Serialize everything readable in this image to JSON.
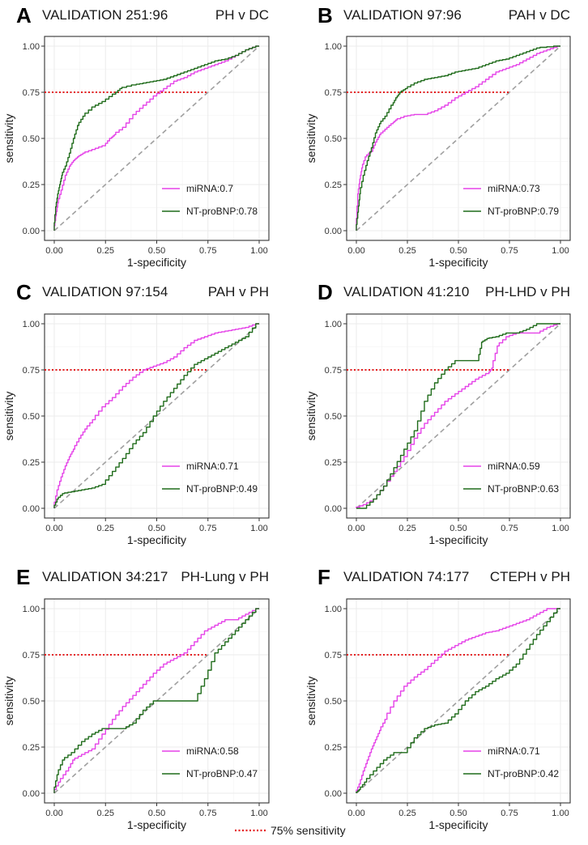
{
  "figure_legend": {
    "label": "75% sensitivity"
  },
  "colors": {
    "mirna": "#e542e8",
    "ntprobnp": "#1f6b1a",
    "threshold": "#e41a1c",
    "diagonal": "#a0a0a0",
    "grid": "#ebebeb",
    "panel_border": "#333333"
  },
  "chart_data": [
    {
      "type": "line",
      "letter": "A",
      "title": "VALIDATION 251:96",
      "subtitle": "PH v DC",
      "xlabel": "1-specificity",
      "ylabel": "sensitivity",
      "xlim": [
        0,
        1
      ],
      "ylim": [
        0,
        1
      ],
      "ticks": [
        "0.00",
        "0.25",
        "0.50",
        "0.75",
        "1.00"
      ],
      "threshold": 0.75,
      "series": [
        {
          "name": "miRNA",
          "legend": "miRNA:0.7",
          "color": "#e542e8",
          "x": [
            0,
            0.01,
            0.02,
            0.04,
            0.06,
            0.08,
            0.1,
            0.12,
            0.15,
            0.2,
            0.25,
            0.28,
            0.3,
            0.35,
            0.4,
            0.45,
            0.5,
            0.55,
            0.6,
            0.65,
            0.7,
            0.75,
            0.8,
            0.85,
            0.9,
            0.95,
            1.0
          ],
          "y": [
            0,
            0.08,
            0.15,
            0.22,
            0.3,
            0.35,
            0.38,
            0.4,
            0.42,
            0.44,
            0.46,
            0.5,
            0.52,
            0.56,
            0.63,
            0.68,
            0.73,
            0.77,
            0.81,
            0.83,
            0.86,
            0.88,
            0.9,
            0.92,
            0.95,
            0.98,
            1.0
          ]
        },
        {
          "name": "NT-proBNP",
          "legend": "NT-proBNP:0.78",
          "color": "#1f6b1a",
          "x": [
            0,
            0.01,
            0.02,
            0.03,
            0.04,
            0.06,
            0.08,
            0.1,
            0.12,
            0.15,
            0.2,
            0.25,
            0.3,
            0.33,
            0.4,
            0.45,
            0.5,
            0.55,
            0.6,
            0.65,
            0.7,
            0.75,
            0.8,
            0.85,
            0.9,
            0.95,
            1.0
          ],
          "y": [
            0,
            0.13,
            0.2,
            0.25,
            0.3,
            0.35,
            0.42,
            0.5,
            0.57,
            0.62,
            0.67,
            0.7,
            0.74,
            0.77,
            0.79,
            0.8,
            0.81,
            0.82,
            0.84,
            0.86,
            0.88,
            0.9,
            0.92,
            0.93,
            0.95,
            0.98,
            1.0
          ]
        }
      ]
    },
    {
      "type": "line",
      "letter": "B",
      "title": "VALIDATION 97:96",
      "subtitle": "PAH v DC",
      "xlabel": "1-specificity",
      "ylabel": "sensitivity",
      "xlim": [
        0,
        1
      ],
      "ylim": [
        0,
        1
      ],
      "ticks": [
        "0.00",
        "0.25",
        "0.50",
        "0.75",
        "1.00"
      ],
      "threshold": 0.75,
      "series": [
        {
          "name": "miRNA",
          "legend": "miRNA:0.73",
          "color": "#e542e8",
          "x": [
            0,
            0.01,
            0.02,
            0.03,
            0.05,
            0.08,
            0.1,
            0.12,
            0.15,
            0.18,
            0.2,
            0.25,
            0.3,
            0.35,
            0.4,
            0.45,
            0.5,
            0.55,
            0.6,
            0.65,
            0.7,
            0.75,
            0.8,
            0.85,
            0.9,
            0.95,
            1.0
          ],
          "y": [
            0,
            0.2,
            0.28,
            0.34,
            0.4,
            0.43,
            0.48,
            0.52,
            0.55,
            0.58,
            0.6,
            0.62,
            0.63,
            0.63,
            0.65,
            0.68,
            0.72,
            0.75,
            0.78,
            0.82,
            0.86,
            0.88,
            0.9,
            0.93,
            0.96,
            0.98,
            1.0
          ]
        },
        {
          "name": "NT-proBNP",
          "legend": "NT-proBNP:0.79",
          "color": "#1f6b1a",
          "x": [
            0,
            0.01,
            0.02,
            0.04,
            0.06,
            0.08,
            0.1,
            0.12,
            0.15,
            0.18,
            0.2,
            0.22,
            0.25,
            0.3,
            0.35,
            0.4,
            0.45,
            0.5,
            0.55,
            0.6,
            0.65,
            0.7,
            0.75,
            0.8,
            0.85,
            0.9,
            1.0
          ],
          "y": [
            0,
            0.1,
            0.2,
            0.3,
            0.38,
            0.45,
            0.53,
            0.58,
            0.62,
            0.68,
            0.72,
            0.75,
            0.77,
            0.8,
            0.82,
            0.83,
            0.84,
            0.86,
            0.87,
            0.88,
            0.9,
            0.92,
            0.93,
            0.95,
            0.97,
            0.99,
            1.0
          ]
        }
      ]
    },
    {
      "type": "line",
      "letter": "C",
      "title": "VALIDATION 97:154",
      "subtitle": "PAH v PH",
      "xlabel": "1-specificity",
      "ylabel": "sensitivity",
      "xlim": [
        0,
        1
      ],
      "ylim": [
        0,
        1
      ],
      "ticks": [
        "0.00",
        "0.25",
        "0.50",
        "0.75",
        "1.00"
      ],
      "threshold": 0.75,
      "series": [
        {
          "name": "miRNA",
          "legend": "miRNA:0.71",
          "color": "#e542e8",
          "x": [
            0,
            0.02,
            0.04,
            0.06,
            0.08,
            0.1,
            0.13,
            0.16,
            0.2,
            0.25,
            0.3,
            0.35,
            0.4,
            0.45,
            0.5,
            0.55,
            0.6,
            0.65,
            0.7,
            0.75,
            0.8,
            0.85,
            0.9,
            0.95,
            1.0
          ],
          "y": [
            0,
            0.1,
            0.17,
            0.23,
            0.28,
            0.32,
            0.38,
            0.43,
            0.48,
            0.55,
            0.6,
            0.66,
            0.71,
            0.75,
            0.77,
            0.79,
            0.82,
            0.87,
            0.91,
            0.93,
            0.95,
            0.96,
            0.97,
            0.98,
            1.0
          ]
        },
        {
          "name": "NT-proBNP",
          "legend": "NT-proBNP:0.49",
          "color": "#1f6b1a",
          "x": [
            0,
            0.02,
            0.05,
            0.1,
            0.15,
            0.2,
            0.25,
            0.3,
            0.35,
            0.4,
            0.45,
            0.5,
            0.55,
            0.6,
            0.65,
            0.7,
            0.75,
            0.8,
            0.85,
            0.9,
            0.95,
            1.0
          ],
          "y": [
            0,
            0.05,
            0.08,
            0.09,
            0.1,
            0.11,
            0.13,
            0.2,
            0.27,
            0.35,
            0.41,
            0.5,
            0.58,
            0.65,
            0.72,
            0.78,
            0.81,
            0.84,
            0.87,
            0.9,
            0.93,
            1.0
          ]
        }
      ]
    },
    {
      "type": "line",
      "letter": "D",
      "title": "VALIDATION 41:210",
      "subtitle": "PH-LHD v PH",
      "xlabel": "1-specificity",
      "ylabel": "sensitivity",
      "xlim": [
        0,
        1
      ],
      "ylim": [
        0,
        1
      ],
      "ticks": [
        "0.00",
        "0.25",
        "0.50",
        "0.75",
        "1.00"
      ],
      "threshold": 0.75,
      "series": [
        {
          "name": "miRNA",
          "legend": "miRNA:0.59",
          "color": "#e542e8",
          "x": [
            0,
            0.05,
            0.1,
            0.15,
            0.2,
            0.25,
            0.3,
            0.35,
            0.4,
            0.45,
            0.5,
            0.55,
            0.6,
            0.65,
            0.67,
            0.7,
            0.75,
            0.8,
            0.85,
            0.9,
            0.95,
            1.0
          ],
          "y": [
            0,
            0.02,
            0.05,
            0.12,
            0.2,
            0.28,
            0.38,
            0.46,
            0.52,
            0.58,
            0.62,
            0.66,
            0.7,
            0.73,
            0.76,
            0.88,
            0.93,
            0.95,
            0.95,
            0.95,
            0.98,
            1.0
          ]
        },
        {
          "name": "NT-proBNP",
          "legend": "NT-proBNP:0.63",
          "color": "#1f6b1a",
          "x": [
            0,
            0.05,
            0.1,
            0.15,
            0.2,
            0.25,
            0.3,
            0.35,
            0.4,
            0.45,
            0.5,
            0.55,
            0.6,
            0.62,
            0.65,
            0.7,
            0.75,
            0.8,
            0.85,
            0.9,
            0.95,
            1.0
          ],
          "y": [
            0,
            0.0,
            0.05,
            0.12,
            0.22,
            0.32,
            0.42,
            0.58,
            0.68,
            0.75,
            0.8,
            0.8,
            0.8,
            0.9,
            0.92,
            0.93,
            0.95,
            0.95,
            0.97,
            1.0,
            1.0,
            1.0
          ]
        }
      ]
    },
    {
      "type": "line",
      "letter": "E",
      "title": "VALIDATION 34:217",
      "subtitle": "PH-Lung v PH",
      "xlabel": "1-specificity",
      "ylabel": "sensitivity",
      "xlim": [
        0,
        1
      ],
      "ylim": [
        0,
        1
      ],
      "ticks": [
        "0.00",
        "0.25",
        "0.50",
        "0.75",
        "1.00"
      ],
      "threshold": 0.75,
      "series": [
        {
          "name": "miRNA",
          "legend": "miRNA:0.58",
          "color": "#e542e8",
          "x": [
            0,
            0.03,
            0.07,
            0.1,
            0.15,
            0.2,
            0.25,
            0.3,
            0.35,
            0.4,
            0.45,
            0.5,
            0.55,
            0.6,
            0.65,
            0.7,
            0.75,
            0.8,
            0.85,
            0.9,
            0.95,
            1.0
          ],
          "y": [
            0,
            0.06,
            0.12,
            0.18,
            0.21,
            0.24,
            0.32,
            0.4,
            0.47,
            0.53,
            0.59,
            0.65,
            0.7,
            0.73,
            0.76,
            0.82,
            0.88,
            0.91,
            0.94,
            0.94,
            0.97,
            1.0
          ]
        },
        {
          "name": "NT-proBNP",
          "legend": "NT-proBNP:0.47",
          "color": "#1f6b1a",
          "x": [
            0,
            0.02,
            0.05,
            0.1,
            0.15,
            0.2,
            0.25,
            0.3,
            0.35,
            0.4,
            0.45,
            0.5,
            0.55,
            0.6,
            0.65,
            0.7,
            0.75,
            0.8,
            0.85,
            0.9,
            0.95,
            1.0
          ],
          "y": [
            0,
            0.1,
            0.18,
            0.22,
            0.28,
            0.32,
            0.35,
            0.35,
            0.35,
            0.38,
            0.45,
            0.5,
            0.5,
            0.5,
            0.5,
            0.5,
            0.62,
            0.76,
            0.82,
            0.88,
            0.94,
            1.0
          ]
        }
      ]
    },
    {
      "type": "line",
      "letter": "F",
      "title": "VALIDATION 74:177",
      "subtitle": "CTEPH v PH",
      "xlabel": "1-specificity",
      "ylabel": "sensitivity",
      "xlim": [
        0,
        1
      ],
      "ylim": [
        0,
        1
      ],
      "ticks": [
        "0.00",
        "0.25",
        "0.50",
        "0.75",
        "1.00"
      ],
      "threshold": 0.75,
      "series": [
        {
          "name": "miRNA",
          "legend": "miRNA:0.71",
          "color": "#e542e8",
          "x": [
            0,
            0.02,
            0.04,
            0.06,
            0.08,
            0.1,
            0.12,
            0.15,
            0.2,
            0.25,
            0.3,
            0.35,
            0.4,
            0.45,
            0.5,
            0.55,
            0.6,
            0.65,
            0.7,
            0.75,
            0.8,
            0.85,
            0.9,
            0.95,
            1.0
          ],
          "y": [
            0,
            0.05,
            0.12,
            0.18,
            0.24,
            0.29,
            0.34,
            0.4,
            0.5,
            0.58,
            0.63,
            0.67,
            0.72,
            0.77,
            0.8,
            0.83,
            0.85,
            0.87,
            0.88,
            0.9,
            0.92,
            0.94,
            0.97,
            1.0,
            1.0
          ]
        },
        {
          "name": "NT-proBNP",
          "legend": "NT-proBNP:0.42",
          "color": "#1f6b1a",
          "x": [
            0,
            0.02,
            0.05,
            0.1,
            0.15,
            0.2,
            0.25,
            0.3,
            0.35,
            0.4,
            0.45,
            0.5,
            0.55,
            0.6,
            0.65,
            0.7,
            0.75,
            0.8,
            0.85,
            0.9,
            0.95,
            1.0
          ],
          "y": [
            0,
            0.02,
            0.06,
            0.12,
            0.18,
            0.22,
            0.22,
            0.3,
            0.35,
            0.37,
            0.38,
            0.43,
            0.5,
            0.55,
            0.58,
            0.62,
            0.65,
            0.7,
            0.78,
            0.86,
            0.93,
            1.0
          ]
        }
      ]
    }
  ]
}
